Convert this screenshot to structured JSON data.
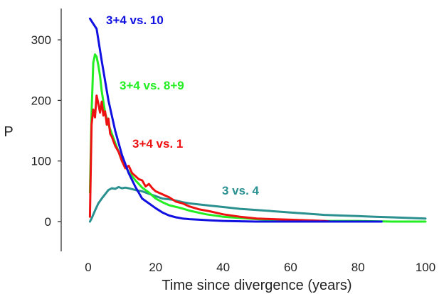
{
  "chart_data": {
    "type": "line",
    "xlabel": "Time since divergence (years)",
    "ylabel": "P",
    "xlim": [
      0,
      100
    ],
    "ylim": [
      -50,
      350
    ],
    "x_ticks": [
      0,
      20,
      40,
      60,
      80,
      100
    ],
    "y_ticks": [
      0,
      100,
      200,
      300
    ],
    "grid": false,
    "legend": "inline labels",
    "series": [
      {
        "name": "3+4 vs. 10",
        "color": "#1010e0",
        "x": [
          0.5,
          2.5,
          4,
          6,
          8,
          10,
          12,
          14,
          16,
          18,
          20,
          22,
          24,
          26,
          28,
          30,
          33,
          36,
          40,
          45,
          50,
          60,
          70,
          80,
          87
        ],
        "y": [
          335,
          318,
          265,
          200,
          150,
          110,
          80,
          57,
          38,
          30,
          22,
          15,
          10,
          7,
          5,
          4,
          3,
          2,
          1,
          0.5,
          0,
          0,
          0,
          0,
          0
        ]
      },
      {
        "name": "3+4 vs. 8+9",
        "color": "#22ee22",
        "x": [
          0.5,
          1,
          1.5,
          2,
          2.5,
          3,
          3.5,
          4,
          5,
          6,
          7,
          8,
          9,
          10,
          12,
          14,
          16,
          18,
          20,
          22,
          24,
          27,
          30,
          35,
          40,
          50,
          60,
          70,
          80,
          90,
          100
        ],
        "y": [
          48,
          180,
          262,
          276,
          272,
          258,
          240,
          215,
          180,
          160,
          145,
          130,
          115,
          100,
          82,
          68,
          56,
          48,
          38,
          32,
          27,
          23,
          18,
          12,
          8,
          4,
          2,
          1,
          1,
          0,
          0
        ]
      },
      {
        "name": "3+4 vs. 1",
        "color": "#ee1111",
        "x": [
          0.5,
          1,
          1.5,
          2,
          2.5,
          3,
          3.5,
          4,
          4.5,
          5,
          5.5,
          6,
          6.5,
          7,
          8,
          9,
          10,
          11,
          12,
          13,
          14,
          15,
          16,
          17,
          18,
          19,
          20,
          22,
          24,
          26,
          28,
          30,
          33,
          36,
          40,
          45,
          50,
          55,
          60,
          65,
          70,
          72
        ],
        "y": [
          8,
          160,
          185,
          172,
          208,
          195,
          180,
          198,
          175,
          182,
          160,
          170,
          145,
          140,
          125,
          115,
          100,
          88,
          92,
          80,
          75,
          70,
          68,
          58,
          62,
          55,
          50,
          45,
          40,
          33,
          30,
          25,
          20,
          17,
          12,
          8,
          5,
          4,
          3,
          2,
          1,
          0
        ]
      },
      {
        "name": "3 vs. 4",
        "color": "#2a9090",
        "x": [
          0.5,
          1,
          2,
          3,
          4,
          5,
          6,
          7,
          8,
          9,
          10,
          11,
          12,
          14,
          16,
          18,
          20,
          22,
          25,
          28,
          30,
          35,
          40,
          45,
          50,
          55,
          60,
          65,
          70,
          75,
          80,
          85,
          90,
          95,
          100
        ],
        "y": [
          0,
          5,
          18,
          30,
          38,
          45,
          52,
          55,
          54,
          57,
          55,
          56,
          55,
          52,
          50,
          46,
          42,
          38,
          36,
          32,
          30,
          27,
          24,
          21,
          19,
          17,
          15,
          13,
          11,
          10,
          9,
          8,
          7,
          6,
          5
        ]
      }
    ]
  }
}
